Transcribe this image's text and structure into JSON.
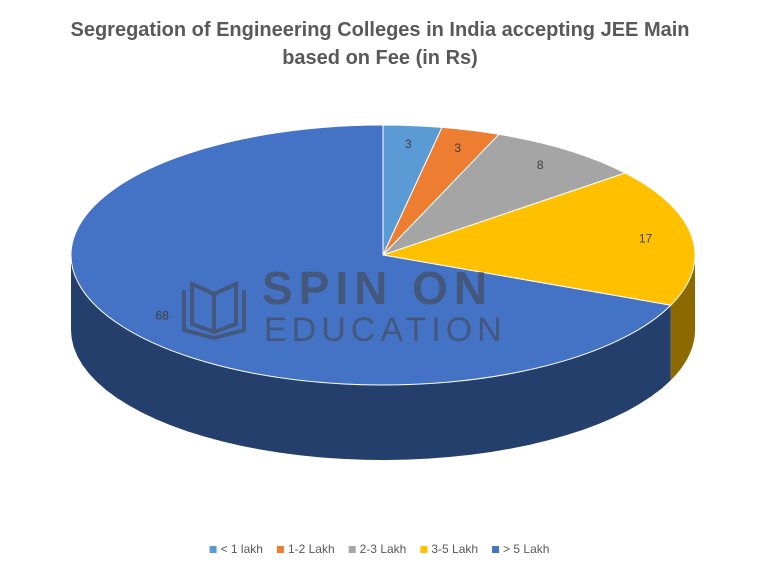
{
  "chart_data": {
    "type": "pie3d",
    "title": "Segregation of Engineering Colleges in India accepting JEE Main based on Fee (in Rs)",
    "categories": [
      "< 1 lakh",
      "1-2 Lakh",
      "2-3 Lakh",
      "3-5 Lakh",
      "> 5 Lakh"
    ],
    "values": [
      3,
      3,
      8,
      17,
      68
    ],
    "colors": [
      "#5b9bd5",
      "#ed7d31",
      "#a5a5a5",
      "#ffc000",
      "#4472c4"
    ],
    "legend": "bottom",
    "annotations": [
      "SPIN ON",
      "EDUCATION"
    ]
  }
}
